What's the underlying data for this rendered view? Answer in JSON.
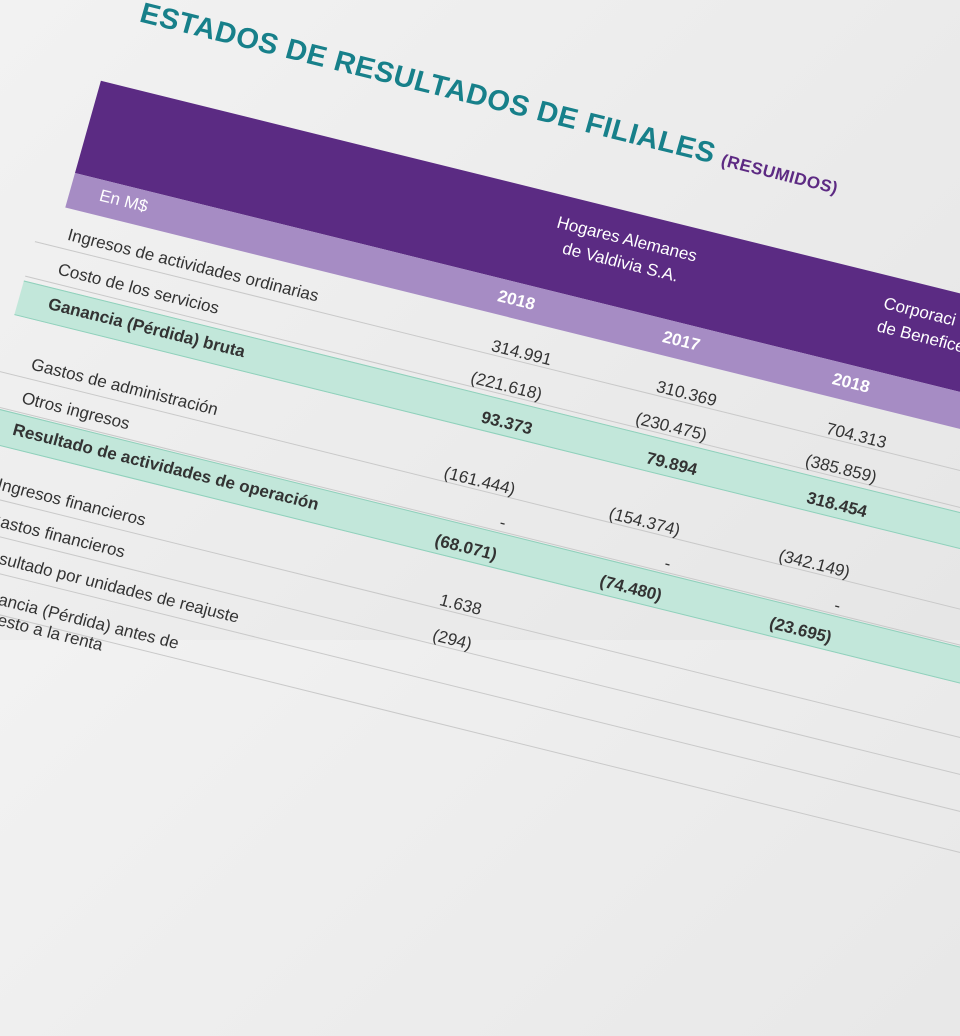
{
  "header": {
    "title": "ESTADOS DE RESULTADOS DE FILIALES",
    "subtitle": "(RESUMIDOS)"
  },
  "table": {
    "unit": "En M$",
    "companies": [
      {
        "lines": [
          "Hogares Alemanes",
          "de Valdivia S.A."
        ]
      },
      {
        "lines": [
          "Corporaci",
          "de Beneficen"
        ]
      }
    ],
    "years": [
      "2018",
      "2017",
      "2018"
    ],
    "rows": [
      {
        "label": "Ingresos de actividades ordinarias",
        "values": [
          "314.991",
          "310.369",
          "704.313"
        ]
      },
      {
        "label": "Costo de los servicios",
        "values": [
          "(221.618)",
          "(230.475)",
          "(385.859)"
        ]
      },
      {
        "label": "Ganancia (Pérdida) bruta",
        "values": [
          "93.373",
          "79.894",
          "318.454"
        ]
      },
      {
        "label": "Gastos de administración",
        "values": [
          "(161.444)",
          "(154.374)",
          "(342.149)"
        ]
      },
      {
        "label": "Otros ingresos",
        "values": [
          "-",
          "-",
          "-"
        ]
      },
      {
        "label": "Resultado de actividades de operación",
        "values": [
          "(68.071)",
          "(74.480)",
          "(23.695)"
        ]
      },
      {
        "label": "Ingresos financieros",
        "values": [
          "1.638"
        ]
      },
      {
        "label": "Gastos financieros",
        "values": [
          "(294)"
        ]
      },
      {
        "label": "Resultado por unidades de reajuste",
        "values": []
      },
      {
        "label": "Ganancia (Pérdida) antes de impuesto a la renta",
        "values": []
      }
    ]
  }
}
